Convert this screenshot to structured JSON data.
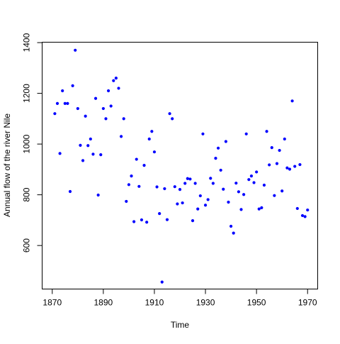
{
  "chart_data": {
    "type": "scatter",
    "xlabel": "Time",
    "ylabel": "Annual flow of the river Nile",
    "xlim": [
      1866.04,
      1973.96
    ],
    "ylim": [
      428.4,
      1401.6
    ],
    "x_ticks": [
      1870,
      1890,
      1910,
      1930,
      1950,
      1970
    ],
    "y_ticks": [
      600,
      800,
      1000,
      1200,
      1400
    ],
    "grid": false,
    "legend": "none",
    "point_color": "#0000ff",
    "series": [
      {
        "x": [
          1871,
          1872,
          1873,
          1874,
          1875,
          1876,
          1877,
          1878,
          1879,
          1880,
          1881,
          1882,
          1883,
          1884,
          1885,
          1886,
          1887,
          1888,
          1889,
          1890,
          1891,
          1892,
          1893,
          1894,
          1895,
          1896,
          1897,
          1898,
          1899,
          1900,
          1901,
          1902,
          1903,
          1904,
          1905,
          1906,
          1907,
          1908,
          1909,
          1910,
          1911,
          1912,
          1913,
          1914,
          1915,
          1916,
          1917,
          1918,
          1919,
          1920,
          1921,
          1922,
          1923,
          1924,
          1925,
          1926,
          1927,
          1928,
          1929,
          1930,
          1931,
          1932,
          1933,
          1934,
          1935,
          1936,
          1937,
          1938,
          1939,
          1940,
          1941,
          1942,
          1943,
          1944,
          1945,
          1946,
          1947,
          1948,
          1949,
          1950,
          1951,
          1952,
          1953,
          1954,
          1955,
          1956,
          1957,
          1958,
          1959,
          1960,
          1961,
          1962,
          1963,
          1964,
          1965,
          1966,
          1967,
          1968,
          1969,
          1970
        ],
        "y": [
          1120,
          1160,
          963,
          1210,
          1160,
          1160,
          813,
          1230,
          1370,
          1140,
          995,
          935,
          1110,
          994,
          1020,
          960,
          1180,
          799,
          958,
          1140,
          1100,
          1210,
          1150,
          1250,
          1260,
          1220,
          1030,
          1100,
          774,
          840,
          874,
          694,
          940,
          833,
          701,
          916,
          692,
          1020,
          1050,
          969,
          831,
          726,
          456,
          824,
          702,
          1120,
          1100,
          832,
          764,
          821,
          768,
          845,
          864,
          862,
          698,
          845,
          744,
          796,
          1040,
          759,
          781,
          865,
          845,
          944,
          984,
          897,
          822,
          1010,
          771,
          676,
          649,
          846,
          812,
          742,
          801,
          1040,
          860,
          874,
          848,
          890,
          744,
          749,
          838,
          1050,
          918,
          986,
          797,
          923,
          975,
          815,
          1020,
          906,
          901,
          1170,
          912,
          746,
          919,
          718,
          714,
          740
        ]
      }
    ]
  }
}
